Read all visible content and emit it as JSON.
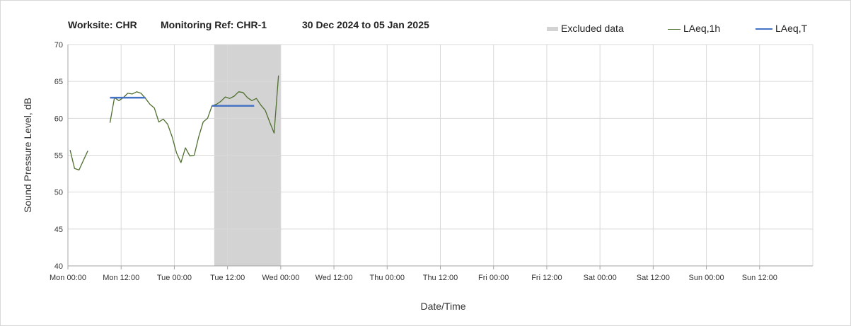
{
  "header": {
    "worksite": "Worksite: CHR",
    "monitoring_ref": "Monitoring Ref: CHR-1",
    "date_range": "30 Dec 2024 to 05 Jan 2025"
  },
  "legend": {
    "excluded_label": "Excluded data",
    "lAeq1h_label": "LAeq,1h",
    "lAeqT_label": "LAeq,T"
  },
  "colors": {
    "excluded_fill": "#d3d3d3",
    "series_1h": "#4f6f2f",
    "series_T": "#4472c4",
    "grid": "#d9d9d9",
    "axis": "#a6a6a6"
  },
  "chart_data": {
    "type": "line",
    "title": "",
    "xlabel": "Date/Time",
    "ylabel": "Sound Pressure Level, dB",
    "xlim_hours": [
      0,
      168
    ],
    "ylim": [
      40,
      70
    ],
    "y_ticks": [
      "40",
      "45",
      "50",
      "55",
      "60",
      "65",
      "70"
    ],
    "x_tick_labels": [
      "Mon 00:00",
      "Mon 12:00",
      "Tue 00:00",
      "Tue 12:00",
      "Wed 00:00",
      "Wed 12:00",
      "Thu 00:00",
      "Thu 12:00",
      "Fri 00:00",
      "Fri 12:00",
      "Sat 00:00",
      "Sat 12:00",
      "Sun 00:00",
      "Sun 12:00"
    ],
    "grid": true,
    "legend_position": "top-right",
    "excluded_range_hours": [
      33,
      48
    ],
    "series": [
      {
        "name": "LAeq,1h",
        "style": "line",
        "segments": [
          [
            [
              0.5,
              55.7
            ],
            [
              1.5,
              53.2
            ],
            [
              2.5,
              53.0
            ],
            [
              3.5,
              54.3
            ],
            [
              4.5,
              55.6
            ]
          ],
          [
            [
              9.5,
              59.4
            ],
            [
              10.5,
              62.8
            ],
            [
              11.5,
              62.4
            ],
            [
              12.5,
              62.8
            ],
            [
              13.5,
              63.4
            ],
            [
              14.5,
              63.3
            ],
            [
              15.5,
              63.6
            ],
            [
              16.5,
              63.4
            ],
            [
              17.5,
              62.7
            ],
            [
              18.5,
              61.9
            ],
            [
              19.5,
              61.4
            ],
            [
              20.5,
              59.5
            ],
            [
              21.5,
              59.9
            ],
            [
              22.5,
              59.2
            ],
            [
              23.5,
              57.5
            ],
            [
              24.5,
              55.3
            ],
            [
              25.5,
              54.0
            ],
            [
              26.5,
              56.0
            ],
            [
              27.5,
              54.9
            ],
            [
              28.5,
              55.0
            ],
            [
              29.5,
              57.5
            ],
            [
              30.5,
              59.5
            ],
            [
              31.5,
              60.0
            ],
            [
              32.5,
              61.7
            ],
            [
              33.5,
              61.9
            ],
            [
              34.5,
              62.3
            ],
            [
              35.5,
              62.9
            ],
            [
              36.5,
              62.7
            ],
            [
              37.5,
              63.0
            ],
            [
              38.5,
              63.6
            ],
            [
              39.5,
              63.5
            ],
            [
              40.5,
              62.8
            ],
            [
              41.5,
              62.4
            ],
            [
              42.5,
              62.7
            ],
            [
              43.5,
              61.8
            ],
            [
              44.5,
              61.1
            ],
            [
              45.5,
              59.5
            ],
            [
              46.5,
              58.0
            ],
            [
              47.5,
              65.8
            ]
          ]
        ]
      },
      {
        "name": "LAeq,T",
        "style": "flat",
        "segments": [
          [
            [
              9.5,
              62.8
            ],
            [
              17.5,
              62.8
            ]
          ],
          [
            [
              32.5,
              61.7
            ],
            [
              42.0,
              61.7
            ]
          ]
        ]
      }
    ]
  }
}
